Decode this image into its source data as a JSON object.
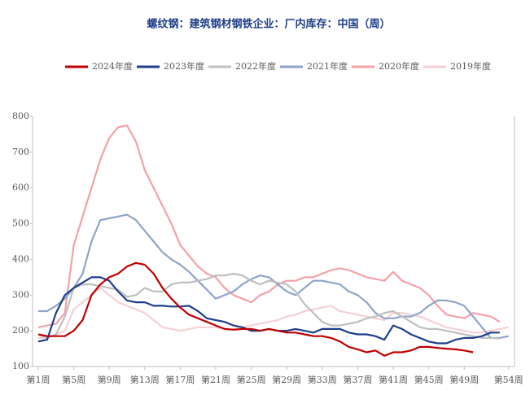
{
  "chart_data": {
    "type": "line",
    "title": "螺纹钢：建筑钢材钢铁企业：厂内库存：中国（周）",
    "categories": [
      "第1周",
      null,
      null,
      null,
      "第5周",
      null,
      null,
      null,
      "第9周",
      null,
      null,
      null,
      "第13周",
      null,
      null,
      null,
      "第17周",
      null,
      null,
      null,
      "第21周",
      null,
      null,
      null,
      "第25周",
      null,
      null,
      null,
      "第29周",
      null,
      null,
      null,
      "第33周",
      null,
      null,
      null,
      "第37周",
      null,
      null,
      null,
      "第41周",
      null,
      null,
      null,
      "第45周",
      null,
      null,
      null,
      "第49周",
      null,
      null,
      null,
      null,
      "第54周"
    ],
    "ylim": [
      100,
      800
    ],
    "yticks": [
      100,
      200,
      300,
      400,
      500,
      600,
      700,
      800
    ],
    "series": [
      {
        "name": "2024年度",
        "color": "#c00000",
        "values": [
          190,
          185,
          185,
          185,
          200,
          230,
          300,
          330,
          350,
          360,
          380,
          390,
          385,
          360,
          320,
          290,
          265,
          245,
          235,
          225,
          215,
          205,
          203,
          205,
          205,
          200,
          205,
          200,
          195,
          195,
          190,
          185,
          185,
          180,
          170,
          155,
          148,
          140,
          145,
          130,
          140,
          140,
          145,
          155,
          155,
          152,
          150,
          148,
          145,
          140,
          null,
          null,
          null,
          null
        ]
      },
      {
        "name": "2023年度",
        "color": "#1f3e8a",
        "values": [
          170,
          175,
          250,
          300,
          320,
          335,
          350,
          350,
          340,
          310,
          285,
          280,
          280,
          270,
          270,
          268,
          268,
          270,
          255,
          235,
          230,
          225,
          215,
          210,
          200,
          200,
          205,
          200,
          200,
          205,
          200,
          195,
          205,
          205,
          205,
          195,
          190,
          190,
          185,
          175,
          215,
          205,
          190,
          180,
          170,
          165,
          165,
          175,
          180,
          180,
          185,
          195,
          195,
          null
        ]
      },
      {
        "name": "2022年度",
        "color": "#bfbfbf",
        "values": [
          190,
          180,
          190,
          240,
          320,
          330,
          330,
          325,
          320,
          315,
          295,
          300,
          320,
          310,
          310,
          330,
          335,
          335,
          340,
          345,
          355,
          355,
          360,
          355,
          340,
          330,
          340,
          335,
          330,
          310,
          275,
          250,
          225,
          215,
          215,
          220,
          225,
          235,
          240,
          250,
          255,
          240,
          225,
          210,
          205,
          205,
          200,
          195,
          190,
          185,
          180,
          180,
          178,
          null
        ]
      },
      {
        "name": "2021年度",
        "color": "#8ea4c8",
        "values": [
          255,
          255,
          270,
          290,
          320,
          360,
          450,
          510,
          515,
          520,
          525,
          510,
          480,
          450,
          420,
          400,
          385,
          365,
          340,
          315,
          290,
          300,
          310,
          330,
          345,
          355,
          350,
          330,
          310,
          300,
          320,
          340,
          340,
          335,
          330,
          310,
          300,
          280,
          250,
          235,
          235,
          240,
          240,
          250,
          270,
          285,
          285,
          280,
          270,
          240,
          210,
          180,
          180,
          185
        ]
      },
      {
        "name": "2020年度",
        "color": "#f4a0a8",
        "values": [
          210,
          215,
          220,
          250,
          440,
          520,
          600,
          680,
          740,
          770,
          775,
          730,
          650,
          600,
          550,
          500,
          440,
          410,
          380,
          360,
          350,
          320,
          300,
          290,
          280,
          300,
          310,
          330,
          340,
          340,
          350,
          350,
          360,
          370,
          375,
          370,
          360,
          350,
          345,
          340,
          365,
          340,
          330,
          320,
          300,
          270,
          245,
          240,
          235,
          250,
          245,
          240,
          225,
          null
        ]
      },
      {
        "name": "2019年度",
        "color": "#f5d0d5",
        "values": [
          180,
          180,
          190,
          200,
          260,
          280,
          300,
          320,
          300,
          280,
          270,
          260,
          250,
          230,
          210,
          205,
          200,
          205,
          210,
          210,
          210,
          205,
          205,
          210,
          215,
          220,
          225,
          230,
          240,
          245,
          255,
          260,
          265,
          270,
          255,
          250,
          245,
          240,
          235,
          230,
          250,
          250,
          245,
          240,
          230,
          220,
          210,
          205,
          200,
          195,
          195,
          200,
          205,
          210
        ]
      }
    ]
  }
}
